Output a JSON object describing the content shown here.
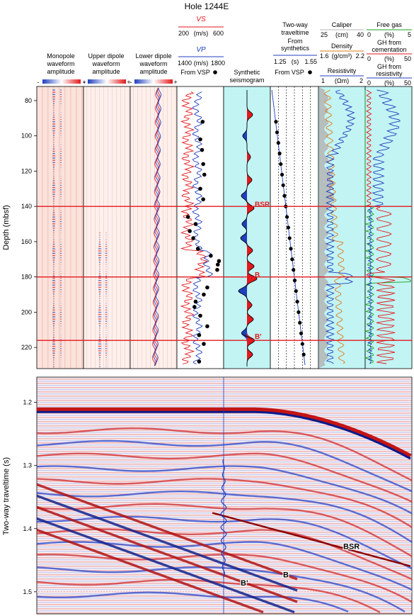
{
  "title": "Hole 1244E",
  "colors": {
    "red": "#e3191c",
    "blue": "#1f3fbf",
    "green": "#1aa01a",
    "orange": "#e07a1a",
    "gray": "#b4b4b4",
    "cyan": "#c2f4f4",
    "pink": "#fbe6e0"
  },
  "chart_data": [
    {
      "type": "line",
      "panel": "waveforms",
      "columns": [
        {
          "label_lines": [
            "Monopole",
            "waveform",
            "amplitude"
          ],
          "scale_minus": "-",
          "scale_plus": "+"
        },
        {
          "label_lines": [
            "Upper dipole",
            "waveform",
            "amplitude"
          ],
          "scale_minus": "-",
          "scale_plus": "+"
        },
        {
          "label_lines": [
            "Lower dipole",
            "waveform",
            "amplitude"
          ],
          "scale_minus": "-",
          "scale_plus": "+"
        }
      ],
      "ylabel": "Depth (mbsf)",
      "yticks": [
        80,
        100,
        120,
        140,
        160,
        180,
        200,
        220
      ],
      "ylim": [
        72,
        232
      ],
      "horizons": [
        {
          "name": "BSR",
          "depth": 140
        },
        {
          "name": "B",
          "depth": 180
        },
        {
          "name": "B'",
          "depth": 216
        }
      ]
    },
    {
      "type": "line",
      "panel": "velocity",
      "vs_label": "VS",
      "vs_range_labels": [
        "200",
        "(m/s)",
        "600"
      ],
      "vs_range": [
        200,
        600
      ],
      "vp_label": "VP",
      "vp_range_labels": [
        "1400",
        "(m/s)",
        "1800"
      ],
      "vp_range": [
        1400,
        1800
      ],
      "vsp_label": "From VSP",
      "vsp_points": [
        {
          "depth": 92,
          "vp": 1620
        },
        {
          "depth": 102,
          "vp": 1600
        },
        {
          "depth": 108,
          "vp": 1615
        },
        {
          "depth": 116,
          "vp": 1625
        },
        {
          "depth": 122,
          "vp": 1635
        },
        {
          "depth": 130,
          "vp": 1600
        },
        {
          "depth": 136,
          "vp": 1625
        },
        {
          "depth": 146,
          "vp": 1495
        },
        {
          "depth": 150,
          "vp": 1560
        },
        {
          "depth": 154,
          "vp": 1510
        },
        {
          "depth": 158,
          "vp": 1540
        },
        {
          "depth": 164,
          "vp": 1580
        },
        {
          "depth": 168,
          "vp": 1690
        },
        {
          "depth": 171,
          "vp": 1760
        },
        {
          "depth": 173,
          "vp": 1750
        },
        {
          "depth": 176,
          "vp": 1745
        },
        {
          "depth": 186,
          "vp": 1660
        },
        {
          "depth": 190,
          "vp": 1630
        },
        {
          "depth": 194,
          "vp": 1560
        },
        {
          "depth": 197,
          "vp": 1550
        },
        {
          "depth": 202,
          "vp": 1600
        },
        {
          "depth": 208,
          "vp": 1660
        },
        {
          "depth": 213,
          "vp": 1590
        },
        {
          "depth": 218,
          "vp": 1630
        },
        {
          "depth": 228,
          "vp": 1590
        }
      ]
    },
    {
      "type": "area",
      "panel": "synthetic",
      "label_lines": [
        "Synthetic",
        "seismogram"
      ],
      "polarity_plus": "+",
      "polarity_minus": "-",
      "annotations": [
        {
          "text": "BSR",
          "depth": 141
        },
        {
          "text": "B",
          "depth": 181
        },
        {
          "text": "B'",
          "depth": 216
        }
      ]
    },
    {
      "type": "scatter",
      "panel": "traveltime",
      "label_lines": [
        "Two-way",
        "traveltime"
      ],
      "sublabel_lines": [
        "From",
        "synthetics"
      ],
      "range_labels": [
        "1.25",
        "(s)",
        "1.55"
      ],
      "xlim": [
        1.25,
        1.55
      ],
      "vsp_label": "From VSP",
      "vsp_points": [
        {
          "depth": 92,
          "t": 1.285
        },
        {
          "depth": 98,
          "t": 1.292
        },
        {
          "depth": 104,
          "t": 1.3
        },
        {
          "depth": 110,
          "t": 1.308
        },
        {
          "depth": 116,
          "t": 1.315
        },
        {
          "depth": 122,
          "t": 1.323
        },
        {
          "depth": 128,
          "t": 1.33
        },
        {
          "depth": 134,
          "t": 1.338
        },
        {
          "depth": 140,
          "t": 1.346
        },
        {
          "depth": 146,
          "t": 1.354
        },
        {
          "depth": 152,
          "t": 1.362
        },
        {
          "depth": 158,
          "t": 1.37
        },
        {
          "depth": 164,
          "t": 1.378
        },
        {
          "depth": 170,
          "t": 1.386
        },
        {
          "depth": 176,
          "t": 1.394
        },
        {
          "depth": 182,
          "t": 1.402
        },
        {
          "depth": 188,
          "t": 1.41
        },
        {
          "depth": 194,
          "t": 1.418
        },
        {
          "depth": 200,
          "t": 1.426
        },
        {
          "depth": 206,
          "t": 1.434
        },
        {
          "depth": 212,
          "t": 1.442
        },
        {
          "depth": 218,
          "t": 1.45
        },
        {
          "depth": 224,
          "t": 1.458
        }
      ]
    },
    {
      "type": "line",
      "panel": "density",
      "caliper_label": "Caliper",
      "caliper_range_labels": [
        "25",
        "(cm)",
        "40"
      ],
      "density_label": "Density",
      "density_range_labels": [
        "1.6",
        "(g/cm³)",
        "2.2"
      ],
      "density_range": [
        1.6,
        2.2
      ],
      "resistivity_label": "Resistivity",
      "resistivity_range_labels": [
        "1",
        "(Ωm)",
        "2"
      ],
      "resistivity_range": [
        1,
        2
      ]
    },
    {
      "type": "line",
      "panel": "gas_hydrate",
      "free_gas_label": "Free gas",
      "free_gas_range_labels": [
        "0",
        "(%)",
        "5"
      ],
      "cementation_label_lines": [
        "GH from",
        "cementation"
      ],
      "cementation_range_labels": [
        "0",
        "(%)",
        "50"
      ],
      "resistivity_gh_label_lines": [
        "GH from",
        "resistivity"
      ],
      "resistivity_gh_range_labels": [
        "0",
        "(%)",
        "50"
      ]
    },
    {
      "type": "heatmap",
      "panel": "seismic_section",
      "ylabel": "Two-way traveltime (s)",
      "yticks": [
        1.2,
        1.3,
        1.4,
        1.5
      ],
      "ylim": [
        1.16,
        1.535
      ],
      "reflector_labels": [
        {
          "text": "BSR",
          "t": 1.432
        },
        {
          "text": "B",
          "t": 1.477
        },
        {
          "text": "B'",
          "t": 1.49
        }
      ]
    }
  ]
}
